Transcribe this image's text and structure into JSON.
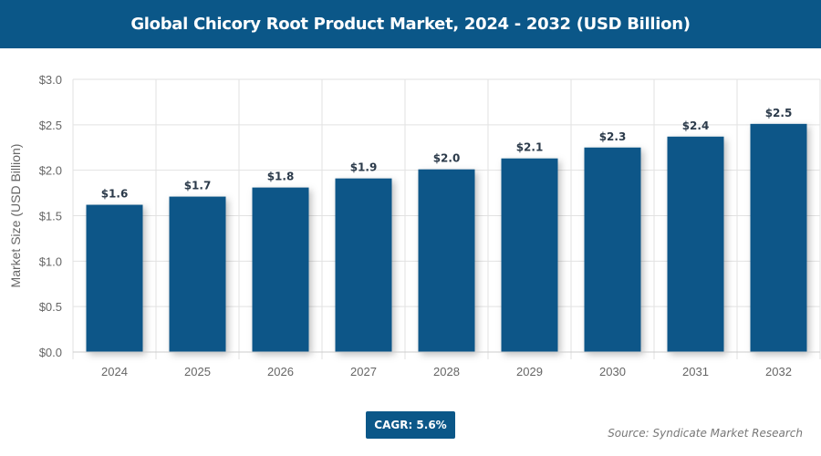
{
  "chart_data": {
    "type": "bar",
    "title": "Global Chicory Root Product Market, 2024 - 2032 (USD Billion)",
    "ylabel": "Market Size (USD Billion)",
    "xlabel": "",
    "categories": [
      "2024",
      "2025",
      "2026",
      "2027",
      "2028",
      "2029",
      "2030",
      "2031",
      "2032"
    ],
    "values": [
      1.62,
      1.71,
      1.81,
      1.91,
      2.01,
      2.13,
      2.25,
      2.37,
      2.51
    ],
    "data_labels": [
      "$1.6",
      "$1.7",
      "$1.8",
      "$1.9",
      "$2.0",
      "$2.1",
      "$2.3",
      "$2.4",
      "$2.5"
    ],
    "ylim": [
      0,
      3.0
    ],
    "yticks": [
      0,
      0.5,
      1.0,
      1.5,
      2.0,
      2.5,
      3.0
    ],
    "ytick_labels": [
      "$0.0",
      "$0.5",
      "$1.0",
      "$1.5",
      "$2.0",
      "$2.5",
      "$3.0"
    ],
    "grid": true,
    "legend": "none",
    "colors": {
      "bar": "#0b5788",
      "title_bar": "#0b5788",
      "data_label": "#2b3a4a"
    }
  },
  "cagr_label": "CAGR: 5.6%",
  "source": "Source: Syndicate Market Research"
}
